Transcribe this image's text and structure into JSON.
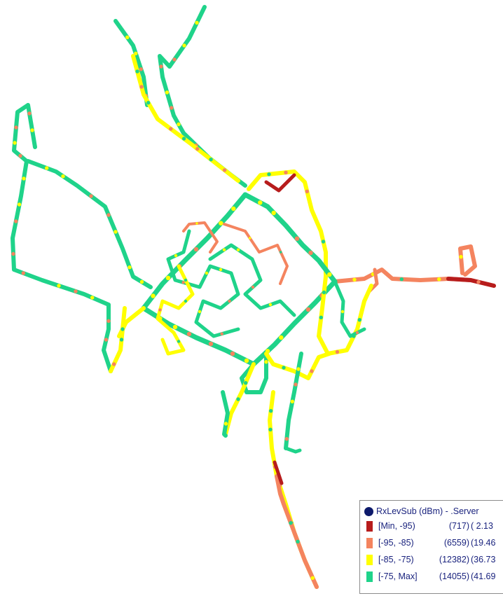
{
  "colors": {
    "bin_min_95": "#b71c1c",
    "bin_95_85": "#f4845f",
    "bin_85_75": "#ffff00",
    "bin_75_max": "#1fd38a",
    "legend_text": "#1a237e",
    "title_dot": "#0d1a6b"
  },
  "legend": {
    "title": "RxLevSub (dBm) - .Server",
    "rows": [
      {
        "range": "[Min, -95)",
        "count": "(717)",
        "percent": "( 2.13"
      },
      {
        "range": "[-95, -85)",
        "count": "(6559)",
        "percent": "(19.46"
      },
      {
        "range": "[-85, -75)",
        "count": "(12382)",
        "percent": "(36.73"
      },
      {
        "range": "[-75, Max]",
        "count": "(14055)",
        "percent": "(41.69"
      }
    ]
  }
}
